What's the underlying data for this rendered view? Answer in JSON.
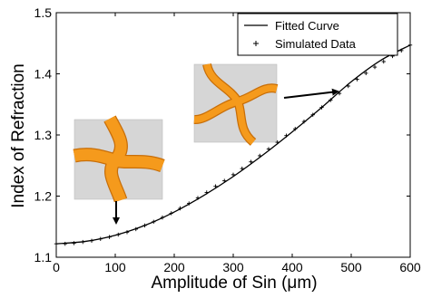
{
  "chart_data": {
    "type": "line",
    "title": "",
    "xlabel": "Amplitude of Sin (μm)",
    "ylabel": "Index of Refraction",
    "xlim": [
      0,
      600
    ],
    "ylim": [
      1.1,
      1.5
    ],
    "xticks": [
      0,
      100,
      200,
      300,
      400,
      500,
      600
    ],
    "yticks": [
      1.1,
      1.2,
      1.3,
      1.4,
      1.5
    ],
    "xtick_labels": [
      "0",
      "100",
      "200",
      "300",
      "400",
      "500",
      "600"
    ],
    "ytick_labels": [
      "1.1",
      "1.2",
      "1.3",
      "1.4",
      "1.5"
    ],
    "grid": false,
    "legend_position": "top-right",
    "series": [
      {
        "name": "Fitted Curve",
        "style": "line",
        "color": "#000000",
        "x": [
          0,
          50,
          100,
          150,
          200,
          250,
          300,
          350,
          400,
          450,
          500,
          550,
          600
        ],
        "y": [
          1.122,
          1.126,
          1.136,
          1.152,
          1.174,
          1.201,
          1.232,
          1.267,
          1.305,
          1.345,
          1.387,
          1.422,
          1.447
        ]
      },
      {
        "name": "Simulated Data",
        "style": "marker-plus",
        "color": "#000000",
        "x": [
          0,
          15,
          30,
          45,
          60,
          75,
          90,
          105,
          120,
          135,
          150,
          165,
          180,
          195,
          210,
          225,
          240,
          255,
          270,
          285,
          300,
          315,
          330,
          345,
          360,
          375,
          390,
          405,
          420,
          435,
          450,
          465,
          480,
          495,
          510,
          525,
          540,
          555,
          570,
          585,
          600
        ],
        "y": [
          1.122,
          1.122,
          1.123,
          1.125,
          1.127,
          1.13,
          1.133,
          1.137,
          1.141,
          1.146,
          1.152,
          1.158,
          1.165,
          1.172,
          1.18,
          1.188,
          1.197,
          1.206,
          1.216,
          1.225,
          1.235,
          1.245,
          1.256,
          1.266,
          1.277,
          1.288,
          1.299,
          1.31,
          1.322,
          1.333,
          1.345,
          1.357,
          1.368,
          1.38,
          1.391,
          1.401,
          1.411,
          1.42,
          1.429,
          1.438,
          1.447
        ]
      }
    ],
    "insets": [
      {
        "name": "cross-inset",
        "anchor_x": 100,
        "anchor_y": 1.133
      },
      {
        "name": "pinwheel-inset",
        "anchor_x": 490,
        "anchor_y": 1.362
      }
    ],
    "colors": {
      "pattern_fill": "#f59a1c",
      "pattern_stroke": "#c86e08",
      "inset_bg": "#d6d6d6"
    }
  }
}
